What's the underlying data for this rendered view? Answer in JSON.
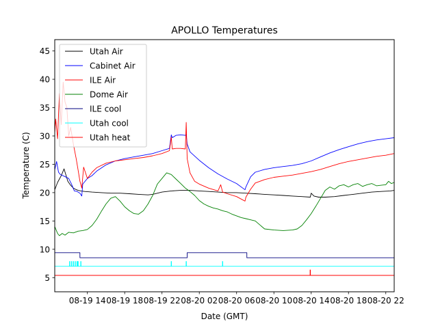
{
  "chart_data": {
    "type": "line",
    "title": "APOLLO Temperatures",
    "xlabel": "Date (GMT)",
    "ylabel": "Temperature (C)",
    "xlim": [
      10.5,
      46.9
    ],
    "ylim": [
      2.5,
      47
    ],
    "grid": false,
    "legend_position": "top-left",
    "x_unit": "hours since 08-19 00:00 GMT",
    "x_ticks": [
      {
        "x": 14,
        "label": "08-19 14"
      },
      {
        "x": 18,
        "label": "08-19 18"
      },
      {
        "x": 22,
        "label": "08-19 22"
      },
      {
        "x": 26,
        "label": "08-20 02"
      },
      {
        "x": 30,
        "label": "08-20 06"
      },
      {
        "x": 34,
        "label": "08-20 10"
      },
      {
        "x": 38,
        "label": "08-20 14"
      },
      {
        "x": 42,
        "label": "08-20 18"
      },
      {
        "x": 46,
        "label": "08-20 22"
      }
    ],
    "y_ticks": [
      {
        "y": 5,
        "label": "5"
      },
      {
        "y": 10,
        "label": "10"
      },
      {
        "y": 15,
        "label": "15"
      },
      {
        "y": 20,
        "label": "20"
      },
      {
        "y": 25,
        "label": "25"
      },
      {
        "y": 30,
        "label": "30"
      },
      {
        "y": 35,
        "label": "35"
      },
      {
        "y": 40,
        "label": "40"
      },
      {
        "y": 45,
        "label": "45"
      }
    ],
    "series": [
      {
        "name": "Utah Air",
        "color": "#000000",
        "x": [
          10.5,
          10.8,
          11.2,
          11.5,
          11.9,
          12.2,
          12.5,
          12.7,
          13.0,
          13.3,
          13.7,
          14.5,
          15.5,
          16.5,
          17.5,
          18.5,
          19.5,
          20.5,
          21.0,
          22.0,
          23.0,
          24.0,
          25.0,
          26.0,
          27.0,
          28.0,
          29.0,
          30.0,
          31.0,
          32.0,
          33.0,
          34.0,
          35.0,
          36.0,
          37.0,
          37.9,
          38.0,
          38.3,
          38.8,
          39.5,
          40.5,
          41.5,
          42.5,
          43.5,
          44.5,
          45.5,
          46.5,
          46.9
        ],
        "values": [
          20.5,
          21.8,
          23.0,
          24.2,
          22.0,
          21.3,
          20.8,
          20.6,
          20.4,
          20.3,
          20.2,
          20.1,
          20.0,
          19.9,
          19.9,
          19.8,
          19.7,
          19.6,
          19.7,
          20.1,
          20.3,
          20.4,
          20.4,
          20.3,
          20.2,
          20.1,
          20.0,
          20.0,
          19.9,
          19.8,
          19.7,
          19.6,
          19.5,
          19.4,
          19.3,
          19.2,
          19.9,
          19.4,
          19.2,
          19.2,
          19.3,
          19.5,
          19.7,
          19.9,
          20.1,
          20.2,
          20.3,
          20.4
        ]
      },
      {
        "name": "Cabinet Air",
        "color": "#0000ff",
        "x": [
          10.5,
          10.7,
          10.9,
          11.1,
          11.5,
          12.0,
          12.3,
          12.6,
          12.9,
          13.2,
          13.4,
          13.5,
          14.0,
          14.5,
          15.0,
          16.0,
          17.0,
          18.0,
          19.0,
          20.0,
          21.0,
          22.0,
          22.8,
          23.0,
          23.1,
          23.5,
          24.0,
          24.5,
          24.6,
          24.7,
          25.0,
          26.0,
          27.0,
          28.0,
          29.0,
          30.0,
          30.9,
          31.0,
          31.5,
          32.0,
          33.0,
          34.0,
          35.0,
          36.0,
          37.0,
          38.0,
          39.0,
          40.0,
          41.0,
          42.0,
          43.0,
          44.0,
          45.0,
          46.0,
          46.9
        ],
        "values": [
          24.0,
          25.5,
          23.6,
          23.2,
          22.9,
          22.5,
          21.5,
          20.3,
          20.2,
          19.9,
          19.4,
          21.5,
          22.5,
          23.0,
          23.8,
          24.9,
          25.6,
          26.0,
          26.3,
          26.6,
          26.9,
          27.4,
          27.8,
          30.2,
          29.7,
          30.1,
          30.2,
          30.1,
          30.3,
          28.6,
          27.2,
          25.7,
          24.4,
          23.3,
          22.4,
          21.6,
          20.5,
          21.0,
          22.8,
          23.6,
          24.1,
          24.4,
          24.6,
          24.8,
          25.1,
          25.6,
          26.3,
          27.0,
          27.6,
          28.1,
          28.6,
          29.0,
          29.3,
          29.5,
          29.7
        ]
      },
      {
        "name": "ILE Air",
        "color": "#ff0000",
        "x": [
          10.5,
          10.6,
          10.8,
          11.0,
          11.2,
          11.4,
          11.6,
          11.8,
          12.0,
          12.2,
          12.5,
          12.8,
          13.0,
          13.2,
          13.4,
          13.6,
          14.0,
          14.5,
          15.0,
          16.0,
          17.0,
          18.0,
          19.0,
          20.0,
          21.0,
          22.0,
          22.8,
          23.0,
          23.1,
          23.5,
          24.0,
          24.5,
          24.6,
          24.7,
          25.0,
          25.5,
          26.0,
          27.0,
          28.0,
          28.3,
          28.5,
          29.0,
          30.0,
          30.9,
          31.0,
          31.5,
          32.0,
          33.0,
          34.0,
          35.0,
          36.0,
          37.0,
          38.0,
          39.0,
          40.0,
          41.0,
          42.0,
          43.0,
          44.0,
          45.0,
          46.0,
          46.9
        ],
        "values": [
          30.5,
          33.0,
          29.5,
          37.5,
          32.0,
          39.5,
          36.0,
          35.0,
          30.0,
          31.5,
          28.5,
          26.0,
          24.0,
          22.0,
          20.8,
          24.5,
          22.5,
          23.6,
          24.4,
          25.2,
          25.6,
          25.8,
          26.0,
          26.2,
          26.5,
          26.9,
          27.4,
          29.8,
          27.7,
          27.8,
          27.8,
          27.7,
          32.4,
          26.0,
          23.5,
          22.0,
          21.5,
          20.8,
          20.3,
          21.4,
          20.1,
          19.8,
          19.3,
          18.5,
          19.2,
          20.6,
          21.7,
          22.3,
          22.7,
          22.9,
          23.1,
          23.4,
          23.7,
          24.1,
          24.6,
          25.1,
          25.5,
          25.8,
          26.1,
          26.4,
          26.6,
          26.9
        ]
      },
      {
        "name": "Dome Air",
        "color": "#008000",
        "x": [
          10.5,
          10.8,
          11.0,
          11.3,
          11.6,
          12.0,
          12.5,
          13.0,
          13.5,
          14.0,
          14.5,
          15.0,
          15.5,
          16.0,
          16.5,
          17.0,
          17.5,
          18.0,
          18.5,
          19.0,
          19.5,
          20.0,
          20.5,
          21.0,
          21.5,
          22.0,
          22.5,
          23.0,
          23.5,
          24.0,
          24.5,
          25.0,
          25.5,
          26.0,
          26.5,
          27.0,
          27.5,
          28.0,
          28.5,
          29.0,
          29.5,
          30.0,
          30.5,
          31.0,
          31.5,
          32.0,
          32.5,
          33.0,
          34.0,
          35.0,
          36.0,
          36.5,
          37.0,
          37.5,
          38.0,
          38.5,
          39.0,
          39.5,
          40.0,
          40.5,
          41.0,
          41.5,
          42.0,
          42.5,
          43.0,
          43.5,
          44.0,
          44.5,
          45.0,
          45.5,
          46.0,
          46.3,
          46.6,
          46.9
        ],
        "values": [
          14.0,
          12.8,
          12.4,
          12.8,
          12.5,
          13.0,
          12.9,
          13.2,
          13.3,
          13.5,
          14.2,
          15.3,
          16.7,
          18.0,
          19.0,
          19.3,
          18.5,
          17.5,
          16.8,
          16.3,
          16.2,
          16.8,
          18.0,
          19.5,
          21.5,
          22.5,
          23.5,
          23.2,
          22.4,
          21.6,
          20.8,
          20.2,
          19.5,
          18.6,
          18.0,
          17.6,
          17.3,
          17.1,
          16.8,
          16.6,
          16.2,
          15.9,
          15.6,
          15.4,
          15.2,
          15.0,
          14.3,
          13.6,
          13.4,
          13.3,
          13.4,
          13.6,
          14.2,
          15.2,
          16.3,
          17.6,
          19.0,
          20.4,
          21.0,
          20.6,
          21.2,
          21.4,
          21.0,
          21.4,
          21.6,
          21.1,
          21.4,
          21.6,
          21.2,
          21.3,
          21.4,
          22.0,
          21.6,
          21.8
        ]
      },
      {
        "name": "ILE cool",
        "color": "#00007f",
        "x": [
          10.5,
          13.2,
          13.2,
          24.7,
          24.7,
          31.1,
          31.1,
          46.9
        ],
        "values": [
          9.4,
          9.4,
          8.5,
          8.5,
          9.4,
          9.4,
          8.5,
          8.5
        ]
      },
      {
        "name": "Utah cool",
        "color": "#00ffff",
        "x": [
          10.5,
          46.9
        ],
        "values": [
          7.0,
          7.0
        ],
        "spikes": [
          {
            "x": 12.1,
            "top": 7.9
          },
          {
            "x": 12.3,
            "top": 7.9
          },
          {
            "x": 12.5,
            "top": 7.9
          },
          {
            "x": 12.7,
            "top": 7.9
          },
          {
            "x": 12.9,
            "top": 7.9
          },
          {
            "x": 13.0,
            "top": 7.9
          },
          {
            "x": 13.3,
            "top": 7.9
          },
          {
            "x": 23.0,
            "top": 7.9
          },
          {
            "x": 24.6,
            "top": 7.9
          },
          {
            "x": 28.5,
            "top": 7.9
          }
        ]
      },
      {
        "name": "Utah heat",
        "color": "#ff0000",
        "x": [
          10.5,
          46.9
        ],
        "values": [
          5.4,
          5.4
        ],
        "spikes": [
          {
            "x": 37.9,
            "top": 6.4
          }
        ]
      }
    ]
  }
}
